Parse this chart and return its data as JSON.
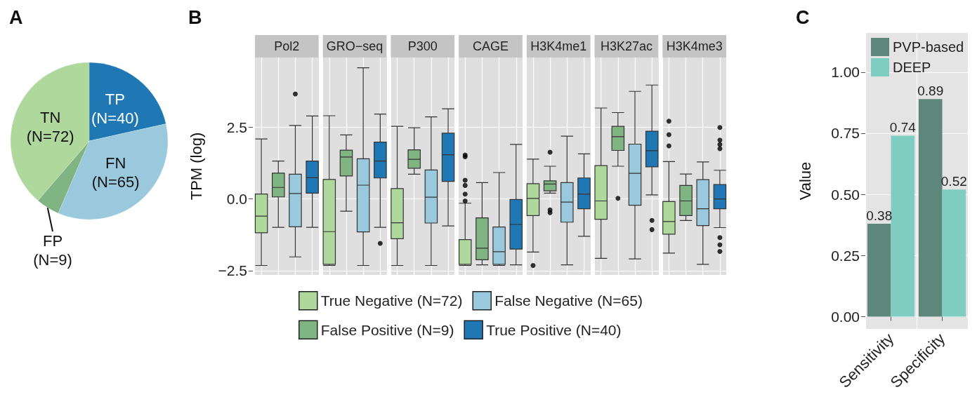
{
  "chart_data": [
    {
      "type": "pie",
      "title": "A",
      "categories": [
        "TP",
        "FN",
        "FP",
        "TN"
      ],
      "values": [
        40,
        65,
        9,
        72
      ],
      "value_labels": [
        "(N=40)",
        "(N=65)",
        "(N=9)",
        "(N=72)"
      ],
      "colors": [
        "#1f78b4",
        "#9ac9de",
        "#80b482",
        "#afd99c"
      ]
    },
    {
      "type": "box",
      "title": "B",
      "ylabel": "TPM (log)",
      "categories": [
        "Pol2",
        "GRO−seq",
        "P300",
        "CAGE",
        "H3K4me1",
        "H3K27ac",
        "H3K4me3"
      ],
      "ylim": [
        -2.65,
        4.93
      ],
      "yticks": [
        {
          "value": -2.5,
          "label": "−2.5"
        },
        {
          "value": 0,
          "label": "0.0"
        },
        2.5
      ],
      "grid": true,
      "legend": "bottom",
      "series": [
        {
          "name": "True Negative (N=72)",
          "color": "#afd99c",
          "boxes": [
            {
              "low": -2.32,
              "q1": -1.18,
              "median": -0.6,
              "q3": 0.17,
              "high": 2.09
            },
            {
              "low": -2.32,
              "q1": -2.28,
              "median": -1.14,
              "q3": 0.68,
              "high": 2.9
            },
            {
              "low": -2.32,
              "q1": -1.39,
              "median": -0.83,
              "q3": 0.36,
              "high": 2.53
            },
            {
              "low": -2.32,
              "q1": -2.28,
              "median": -2.28,
              "q3": -1.42,
              "high": -0.15,
              "outliers": [
                1.53,
                1.47,
                0.65,
                0.47,
                0.17,
                -0.07
              ]
            },
            {
              "low": -1.85,
              "q1": -0.58,
              "median": 0.02,
              "q3": 0.53,
              "high": 1.39,
              "outliers": [
                -2.32
              ]
            },
            {
              "low": -2.07,
              "q1": -0.71,
              "median": -0.07,
              "q3": 1.16,
              "high": 3.17
            },
            {
              "low": -1.89,
              "q1": -1.23,
              "median": -0.79,
              "q3": -0.09,
              "high": 1.3,
              "outliers": [
                2.71,
                2.24,
                1.85
              ]
            }
          ]
        },
        {
          "name": "False Positive (N=9)",
          "color": "#80b482",
          "boxes": [
            {
              "low": -0.99,
              "q1": 0.07,
              "median": 0.4,
              "q3": 0.9,
              "high": 1.32
            },
            {
              "low": -0.43,
              "q1": 0.8,
              "median": 1.46,
              "q3": 1.7,
              "high": 2.23
            },
            {
              "low": 0.86,
              "q1": 1.07,
              "median": 1.38,
              "q3": 1.71,
              "high": 2.48
            },
            {
              "low": -2.3,
              "q1": -2.12,
              "median": -1.72,
              "q3": -0.66,
              "high": 0.57
            },
            {
              "low": 0.2,
              "q1": 0.28,
              "median": 0.52,
              "q3": 0.63,
              "high": 1.14,
              "outliers": [
                1.63,
                -0.38,
                -0.48
              ]
            },
            {
              "low": 1.14,
              "q1": 1.69,
              "median": 2.17,
              "q3": 2.53,
              "high": 3.01,
              "outliers": [
                0.02
              ]
            },
            {
              "low": -0.75,
              "q1": -0.58,
              "median": -0.07,
              "q3": 0.47,
              "high": 0.87
            }
          ]
        },
        {
          "name": "False Negative (N=65)",
          "color": "#9ac9dd",
          "boxes": [
            {
              "low": -2.02,
              "q1": -0.97,
              "median": 0.19,
              "q3": 0.86,
              "high": 2.56,
              "outliers": [
                3.66
              ]
            },
            {
              "low": -2.32,
              "q1": -1.15,
              "median": 0.48,
              "q3": 1.4,
              "high": 4.57
            },
            {
              "low": -2.32,
              "q1": -0.84,
              "median": 0.06,
              "q3": 1.01,
              "high": 2.86
            },
            {
              "low": -2.32,
              "q1": -2.28,
              "median": -1.84,
              "q3": -0.98,
              "high": 0.92
            },
            {
              "low": -2.3,
              "q1": -0.81,
              "median": -0.11,
              "q3": 0.57,
              "high": 2.19
            },
            {
              "low": -2.09,
              "q1": -0.22,
              "median": 0.89,
              "q3": 1.91,
              "high": 3.75
            },
            {
              "low": -2.28,
              "q1": -0.93,
              "median": -0.34,
              "q3": 0.67,
              "high": 1.29
            }
          ]
        },
        {
          "name": "True Positive (N=40)",
          "color": "#1f78b4",
          "boxes": [
            {
              "low": -0.99,
              "q1": 0.2,
              "median": 0.74,
              "q3": 1.32,
              "high": 2.89
            },
            {
              "low": -0.99,
              "q1": 0.73,
              "median": 1.32,
              "q3": 1.98,
              "high": 2.96,
              "outliers": [
                -1.55
              ]
            },
            {
              "low": -0.94,
              "q1": 0.61,
              "median": 1.54,
              "q3": 2.29,
              "high": 3.14
            },
            {
              "low": -2.3,
              "q1": -1.75,
              "median": -0.89,
              "q3": -0.02,
              "high": 1.9
            },
            {
              "low": -1.3,
              "q1": -0.34,
              "median": 0.17,
              "q3": 0.73,
              "high": 1.57
            },
            {
              "low": 0.14,
              "q1": 1.12,
              "median": 1.68,
              "q3": 2.36,
              "high": 3.97,
              "outliers": [
                -0.75,
                -1.07
              ]
            },
            {
              "low": -1.0,
              "q1": -0.34,
              "median": 0.0,
              "q3": 0.5,
              "high": 1.0,
              "outliers": [
                2.49,
                2.05,
                1.9,
                1.75,
                -1.35,
                -1.6,
                -1.83
              ]
            }
          ]
        }
      ]
    },
    {
      "type": "bar",
      "title": "C",
      "ylabel": "Value",
      "categories": [
        "Sensitivity",
        "Specificity"
      ],
      "ylim": [
        -0.05,
        1.16
      ],
      "yticks": [
        {
          "value": 0,
          "label": "0.00"
        },
        {
          "value": 0.25,
          "label": "0.25"
        },
        {
          "value": 0.5,
          "label": "0.50"
        },
        {
          "value": 0.75,
          "label": "0.75"
        },
        {
          "value": 1,
          "label": "1.00"
        }
      ],
      "grid": true,
      "legend": "top",
      "data_labels": true,
      "series": [
        {
          "name": "PVP-based",
          "color": "#5e877c",
          "values": [
            0.38,
            0.89
          ]
        },
        {
          "name": "DEEP",
          "color": "#7fcdc1",
          "values": [
            0.74,
            0.52
          ]
        }
      ]
    }
  ]
}
